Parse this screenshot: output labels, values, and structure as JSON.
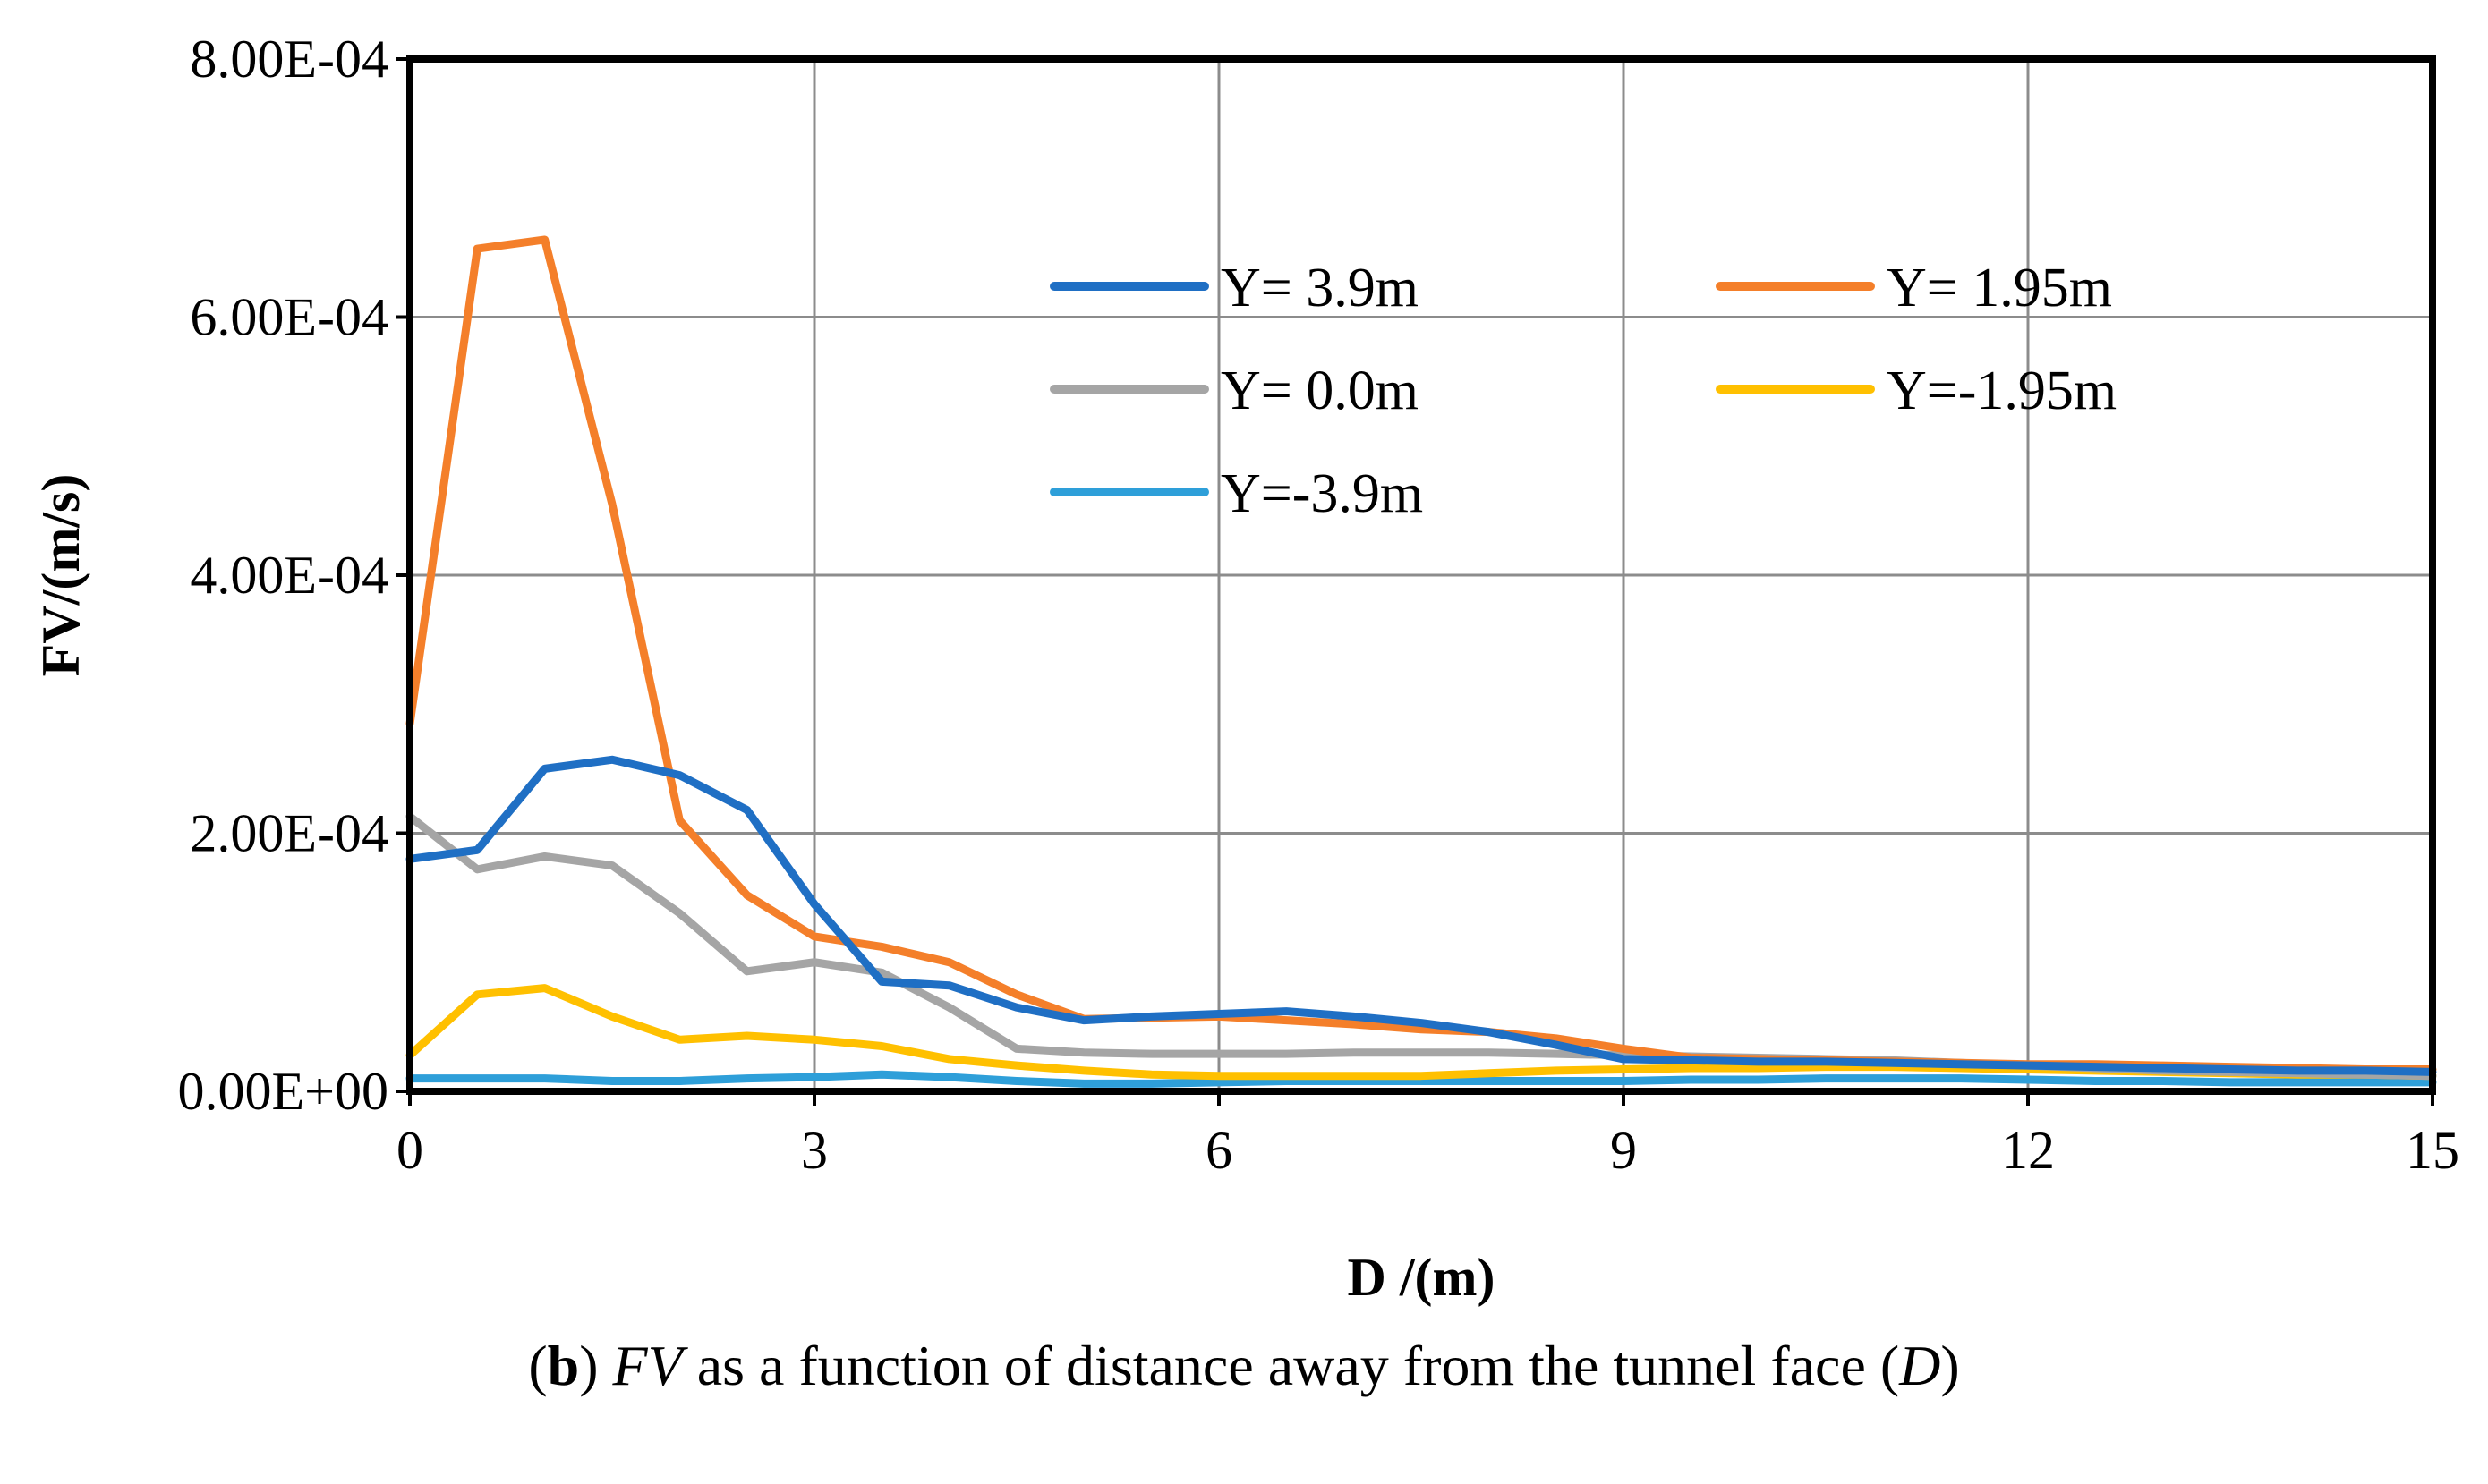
{
  "chart_data": {
    "type": "line",
    "xlabel": "D /(m)",
    "ylabel": "FV/(m/s)",
    "xlim": [
      0,
      15
    ],
    "ylim": [
      0,
      0.0008
    ],
    "xticks": [
      0,
      3,
      6,
      9,
      12,
      15
    ],
    "xtick_labels": [
      "0",
      "3",
      "6",
      "9",
      "12",
      "15"
    ],
    "yticks": [
      0,
      0.0002,
      0.0004,
      0.0006,
      0.0008
    ],
    "ytick_labels": [
      "0.00E+00",
      "2.00E-04",
      "4.00E-04",
      "6.00E-04",
      "8.00E-04"
    ],
    "grid": true,
    "legend_position": "top-right",
    "x": [
      0,
      0.5,
      1,
      1.5,
      2,
      2.5,
      3,
      3.5,
      4,
      4.5,
      5,
      5.5,
      6,
      6.5,
      7,
      7.5,
      8,
      8.5,
      9,
      9.5,
      10,
      10.5,
      11,
      11.5,
      12,
      12.5,
      13,
      13.5,
      14,
      14.5,
      15
    ],
    "series": [
      {
        "name": "Y= 3.9m",
        "color": "#1f6fc4",
        "values": [
          0.00018,
          0.000187,
          0.00025,
          0.000257,
          0.000245,
          0.000218,
          0.000145,
          8.5e-05,
          8.2e-05,
          6.5e-05,
          5.5e-05,
          5.8e-05,
          6e-05,
          6.2e-05,
          5.8e-05,
          5.3e-05,
          4.6e-05,
          3.6e-05,
          2.5e-05,
          2.4e-05,
          2.3e-05,
          2.3e-05,
          2.2e-05,
          2.1e-05,
          2e-05,
          1.9e-05,
          1.8e-05,
          1.7e-05,
          1.6e-05,
          1.6e-05,
          1.5e-05
        ]
      },
      {
        "name": "Y= 1.95m",
        "color": "#f47f2a",
        "values": [
          0.000285,
          0.000653,
          0.00066,
          0.000455,
          0.00021,
          0.000152,
          0.00012,
          0.000112,
          0.0001,
          7.5e-05,
          5.6e-05,
          5.7e-05,
          5.8e-05,
          5.5e-05,
          5.2e-05,
          4.8e-05,
          4.6e-05,
          4.1e-05,
          3.3e-05,
          2.6e-05,
          2.5e-05,
          2.4e-05,
          2.3e-05,
          2.2e-05,
          2.1e-05,
          2.1e-05,
          2e-05,
          1.9e-05,
          1.8e-05,
          1.7e-05,
          1.7e-05
        ]
      },
      {
        "name": "Y= 0.0m",
        "color": "#a5a5a5",
        "values": [
          0.000213,
          0.000172,
          0.000182,
          0.000175,
          0.000138,
          9.3e-05,
          0.0001,
          9.2e-05,
          6.5e-05,
          3.3e-05,
          3e-05,
          2.9e-05,
          2.9e-05,
          2.9e-05,
          3e-05,
          3e-05,
          3e-05,
          2.9e-05,
          2.8e-05,
          2.7e-05,
          2.6e-05,
          2.5e-05,
          2.4e-05,
          2.2e-05,
          2e-05,
          1.8e-05,
          1.6e-05,
          1.5e-05,
          1.4e-05,
          1.3e-05,
          1.2e-05
        ]
      },
      {
        "name": "Y=-1.95m",
        "color": "#ffc000",
        "values": [
          2.8e-05,
          7.5e-05,
          8e-05,
          5.8e-05,
          4e-05,
          4.3e-05,
          4e-05,
          3.5e-05,
          2.5e-05,
          2e-05,
          1.6e-05,
          1.3e-05,
          1.2e-05,
          1.2e-05,
          1.2e-05,
          1.2e-05,
          1.4e-05,
          1.6e-05,
          1.7e-05,
          1.8e-05,
          1.8e-05,
          1.9e-05,
          1.9e-05,
          1.8e-05,
          1.7e-05,
          1.6e-05,
          1.5e-05,
          1.4e-05,
          1.3e-05,
          1.3e-05,
          1.2e-05
        ]
      },
      {
        "name": "Y=-3.9m",
        "color": "#2e9fd9",
        "values": [
          1e-05,
          1e-05,
          1e-05,
          8e-06,
          8e-06,
          1e-05,
          1.1e-05,
          1.3e-05,
          1.1e-05,
          8e-06,
          6e-06,
          6e-06,
          7e-06,
          8e-06,
          8e-06,
          8e-06,
          8e-06,
          8e-06,
          8e-06,
          9e-06,
          9e-06,
          1e-05,
          1e-05,
          1e-05,
          9e-06,
          8e-06,
          8e-06,
          7e-06,
          7e-06,
          7e-06,
          7e-06
        ]
      }
    ]
  },
  "caption": {
    "label": "b",
    "open_paren": "(",
    "close_paren_1": ") ",
    "variable": "FV",
    "text": " as a function of distance away from the tunnel face (",
    "symbol": "D",
    "close_paren_2": ")"
  }
}
